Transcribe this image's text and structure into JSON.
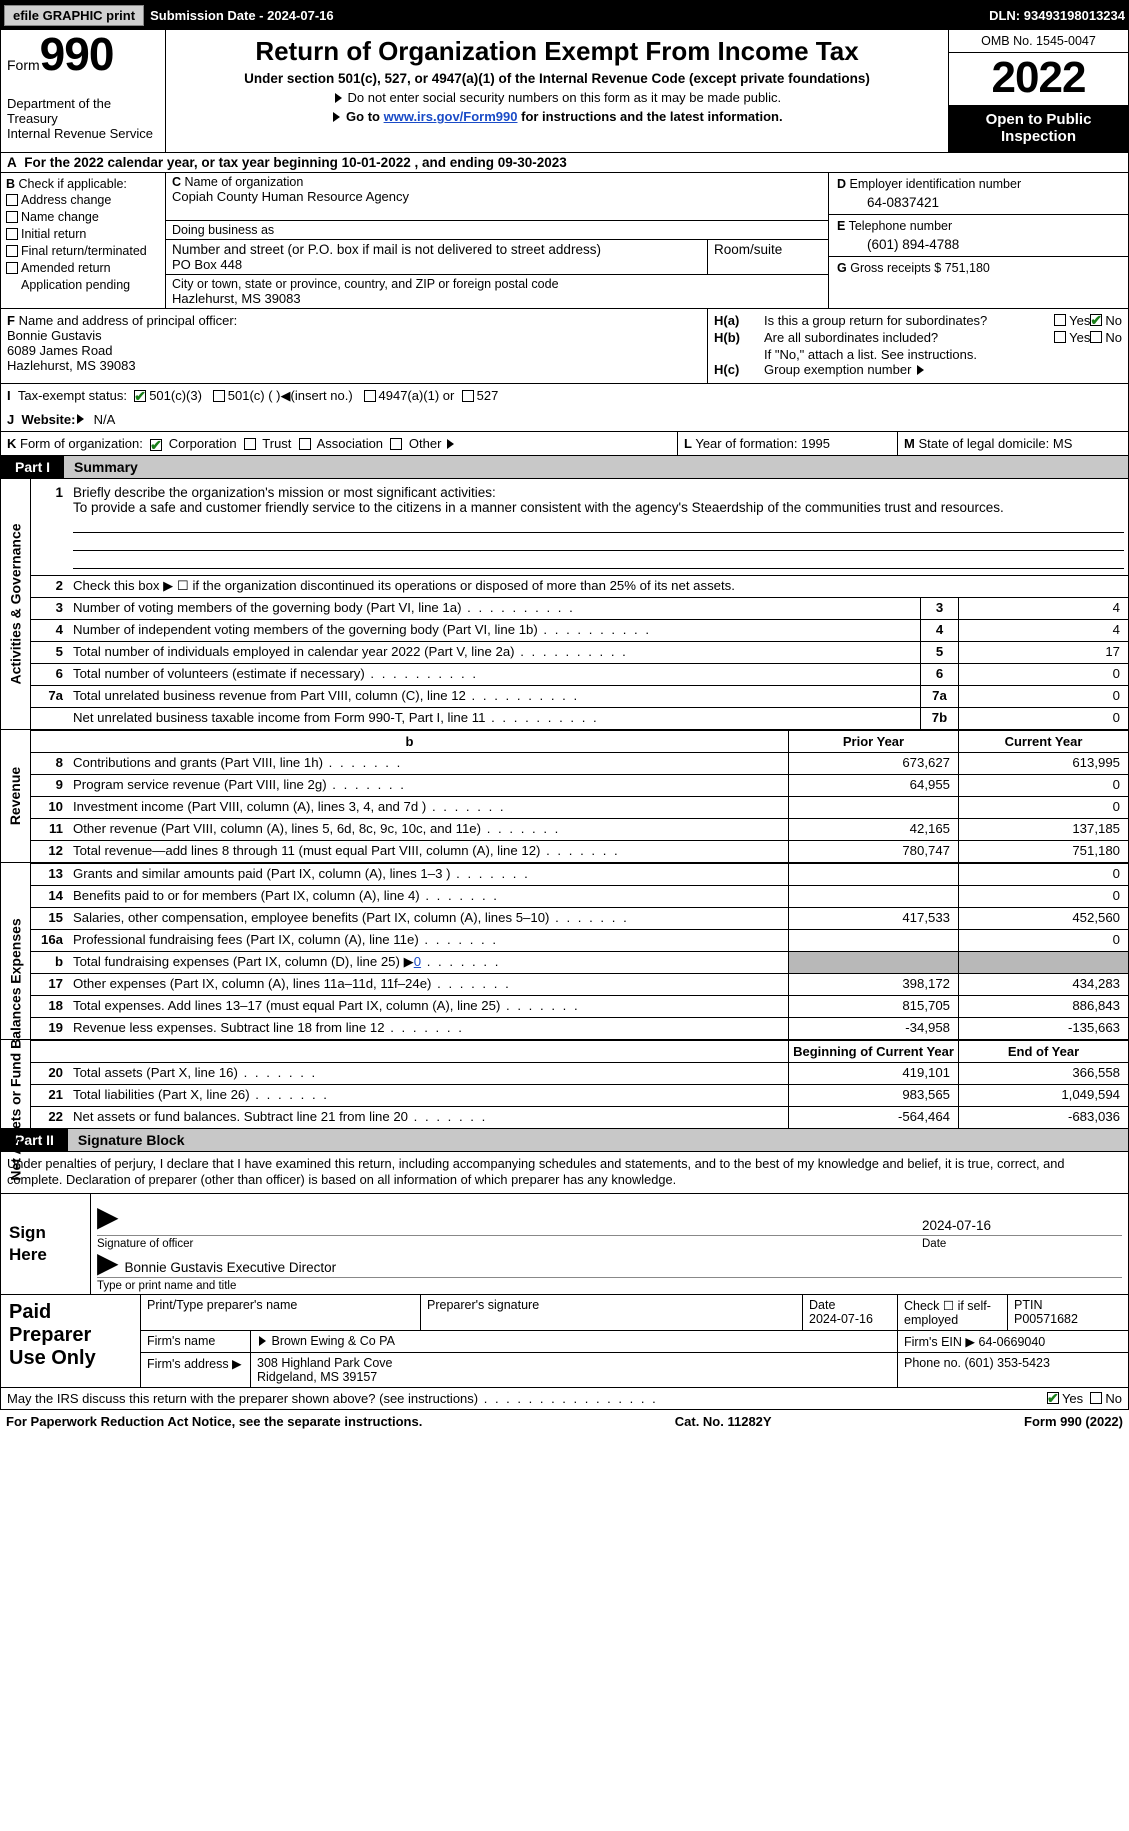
{
  "topbar": {
    "efile": "efile GRAPHIC print",
    "sub_label": "Submission Date - ",
    "sub_date": "2024-07-16",
    "dln_label": "DLN: ",
    "dln": "93493198013234"
  },
  "header": {
    "form_word": "Form",
    "form_num": "990",
    "dept": "Department of the Treasury\nInternal Revenue Service",
    "title": "Return of Organization Exempt From Income Tax",
    "sub": "Under section 501(c), 527, or 4947(a)(1) of the Internal Revenue Code (except private foundations)",
    "note1": "Do not enter social security numbers on this form as it may be made public.",
    "note2_pre": "Go to ",
    "note2_link": "www.irs.gov/Form990",
    "note2_post": " for instructions and the latest information.",
    "omb": "OMB No. 1545-0047",
    "year": "2022",
    "inspect": "Open to Public Inspection"
  },
  "A": {
    "text_pre": "For the 2022 calendar year, or tax year beginning ",
    "begin": "10-01-2022",
    "mid": " , and ending ",
    "end": "09-30-2023"
  },
  "B": {
    "hdr": "Check if applicable:",
    "opts": [
      "Address change",
      "Name change",
      "Initial return",
      "Final return/terminated",
      "Amended return",
      "Application pending"
    ]
  },
  "C": {
    "name_lbl": "Name of organization",
    "name": "Copiah County Human Resource Agency",
    "dba_lbl": "Doing business as",
    "dba": "",
    "street_lbl": "Number and street (or P.O. box if mail is not delivered to street address)",
    "room_lbl": "Room/suite",
    "street": "PO Box 448",
    "city_lbl": "City or town, state or province, country, and ZIP or foreign postal code",
    "city": "Hazlehurst, MS  39083"
  },
  "D": {
    "ein_lbl": "Employer identification number",
    "ein": "64-0837421",
    "tel_lbl": "Telephone number",
    "tel": "(601) 894-4788",
    "gross_lbl": "Gross receipts $ ",
    "gross": "751,180"
  },
  "F": {
    "lbl": "Name and address of principal officer:",
    "name": "Bonnie Gustavis",
    "addr1": "6089 James Road",
    "addr2": "Hazlehurst, MS  39083"
  },
  "H": {
    "a_lbl": "Is this a group return for subordinates?",
    "b_lbl": "Are all subordinates included?",
    "b_note": "If \"No,\" attach a list. See instructions.",
    "c_lbl": "Group exemption number"
  },
  "I": {
    "lbl": "Tax-exempt status:",
    "o1": "501(c)(3)",
    "o2": "501(c) (  )",
    "o2_note": "(insert no.)",
    "o3": "4947(a)(1) or",
    "o4": "527"
  },
  "J": {
    "lbl": "Website:",
    "val": "N/A"
  },
  "K": {
    "lbl": "Form of organization:",
    "opts": [
      "Corporation",
      "Trust",
      "Association",
      "Other"
    ]
  },
  "L": {
    "lbl": "Year of formation: ",
    "val": "1995"
  },
  "M": {
    "lbl": "State of legal domicile: ",
    "val": "MS"
  },
  "part1": {
    "tag": "Part I",
    "title": "Summary"
  },
  "mission": {
    "num": "1",
    "lbl": "Briefly describe the organization's mission or most significant activities:",
    "text": "To provide a safe and customer friendly service to the citizens in a manner consistent with the agency's Steaerdship of the communities trust and resources."
  },
  "lines_ag": [
    {
      "n": "2",
      "t": "Check this box ▶ ☐  if the organization discontinued its operations or disposed of more than 25% of its net assets.",
      "box": "",
      "v": ""
    },
    {
      "n": "3",
      "t": "Number of voting members of the governing body (Part VI, line 1a)",
      "box": "3",
      "v": "4"
    },
    {
      "n": "4",
      "t": "Number of independent voting members of the governing body (Part VI, line 1b)",
      "box": "4",
      "v": "4"
    },
    {
      "n": "5",
      "t": "Total number of individuals employed in calendar year 2022 (Part V, line 2a)",
      "box": "5",
      "v": "17"
    },
    {
      "n": "6",
      "t": "Total number of volunteers (estimate if necessary)",
      "box": "6",
      "v": "0"
    },
    {
      "n": "7a",
      "t": "Total unrelated business revenue from Part VIII, column (C), line 12",
      "box": "7a",
      "v": "0"
    },
    {
      "n": "",
      "t": "Net unrelated business taxable income from Form 990-T, Part I, line 11",
      "box": "7b",
      "v": "0"
    }
  ],
  "colhdr": {
    "prior": "Prior Year",
    "current": "Current Year"
  },
  "rev": [
    {
      "n": "8",
      "t": "Contributions and grants (Part VIII, line 1h)",
      "p": "673,627",
      "c": "613,995"
    },
    {
      "n": "9",
      "t": "Program service revenue (Part VIII, line 2g)",
      "p": "64,955",
      "c": "0"
    },
    {
      "n": "10",
      "t": "Investment income (Part VIII, column (A), lines 3, 4, and 7d )",
      "p": "",
      "c": "0"
    },
    {
      "n": "11",
      "t": "Other revenue (Part VIII, column (A), lines 5, 6d, 8c, 9c, 10c, and 11e)",
      "p": "42,165",
      "c": "137,185"
    },
    {
      "n": "12",
      "t": "Total revenue—add lines 8 through 11 (must equal Part VIII, column (A), line 12)",
      "p": "780,747",
      "c": "751,180"
    }
  ],
  "exp": [
    {
      "n": "13",
      "t": "Grants and similar amounts paid (Part IX, column (A), lines 1–3 )",
      "p": "",
      "c": "0"
    },
    {
      "n": "14",
      "t": "Benefits paid to or for members (Part IX, column (A), line 4)",
      "p": "",
      "c": "0"
    },
    {
      "n": "15",
      "t": "Salaries, other compensation, employee benefits (Part IX, column (A), lines 5–10)",
      "p": "417,533",
      "c": "452,560"
    },
    {
      "n": "16a",
      "t": "Professional fundraising fees (Part IX, column (A), line 11e)",
      "p": "",
      "c": "0"
    },
    {
      "n": "b",
      "t": "Total fundraising expenses (Part IX, column (D), line 25) ▶",
      "p": "shade",
      "c": "shade",
      "link": "0"
    },
    {
      "n": "17",
      "t": "Other expenses (Part IX, column (A), lines 11a–11d, 11f–24e)",
      "p": "398,172",
      "c": "434,283"
    },
    {
      "n": "18",
      "t": "Total expenses. Add lines 13–17 (must equal Part IX, column (A), line 25)",
      "p": "815,705",
      "c": "886,843"
    },
    {
      "n": "19",
      "t": "Revenue less expenses. Subtract line 18 from line 12",
      "p": "-34,958",
      "c": "-135,663"
    }
  ],
  "colhdr2": {
    "begin": "Beginning of Current Year",
    "end": "End of Year"
  },
  "na": [
    {
      "n": "20",
      "t": "Total assets (Part X, line 16)",
      "p": "419,101",
      "c": "366,558"
    },
    {
      "n": "21",
      "t": "Total liabilities (Part X, line 26)",
      "p": "983,565",
      "c": "1,049,594"
    },
    {
      "n": "22",
      "t": "Net assets or fund balances. Subtract line 21 from line 20",
      "p": "-564,464",
      "c": "-683,036"
    }
  ],
  "part2": {
    "tag": "Part II",
    "title": "Signature Block"
  },
  "sig": {
    "decl": "Under penalties of perjury, I declare that I have examined this return, including accompanying schedules and statements, and to the best of my knowledge and belief, it is true, correct, and complete. Declaration of preparer (other than officer) is based on all information of which preparer has any knowledge.",
    "here": "Sign Here",
    "sig_of_officer": "Signature of officer",
    "date": "2024-07-16",
    "date_lbl": "Date",
    "name_title": "Bonnie Gustavis  Executive Director",
    "type_lbl": "Type or print name and title"
  },
  "prep": {
    "hdr": "Paid Preparer Use Only",
    "r1": {
      "c1": "Print/Type preparer's name",
      "c2": "Preparer's signature",
      "c3_lbl": "Date",
      "c3": "2024-07-16",
      "c4": "Check ☐ if self-employed",
      "c5_lbl": "PTIN",
      "c5": "P00571682"
    },
    "r2": {
      "lbl": "Firm's name",
      "val": "Brown Ewing & Co PA",
      "ein_lbl": "Firm's EIN ▶",
      "ein": "64-0669040"
    },
    "r3": {
      "lbl": "Firm's address ▶",
      "val1": "308 Highland Park Cove",
      "val2": "Ridgeland, MS  39157",
      "ph_lbl": "Phone no.",
      "ph": "(601) 353-5423"
    }
  },
  "discuss": "May the IRS discuss this return with the preparer shown above? (see instructions)",
  "footer": {
    "left": "For Paperwork Reduction Act Notice, see the separate instructions.",
    "mid": "Cat. No. 11282Y",
    "right": "Form 990 (2022)"
  },
  "vlabels": {
    "ag": "Activities & Governance",
    "rev": "Revenue",
    "exp": "Expenses",
    "na": "Net Assets or Fund Balances"
  }
}
